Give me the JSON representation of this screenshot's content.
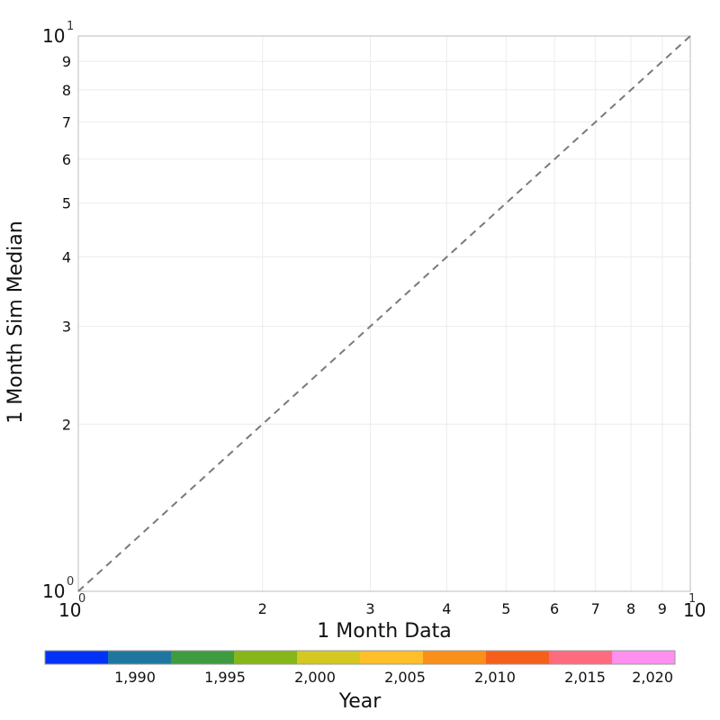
{
  "chart_data": {
    "type": "scatter",
    "xlabel": "1 Month Data",
    "ylabel": "1 Month Sim Median",
    "x_scale": "log",
    "y_scale": "log",
    "xlim": [
      1,
      10
    ],
    "ylim": [
      1,
      10
    ],
    "grid": true,
    "reference_line": {
      "style": "dashed",
      "color": "#7a7a7a",
      "points": [
        [
          1,
          1
        ],
        [
          10,
          10
        ]
      ]
    },
    "x_ticks": {
      "major": [
        {
          "value": 1,
          "base": "10",
          "exp": "0"
        },
        {
          "value": 10,
          "base": "10",
          "exp": "1"
        }
      ],
      "minor": [
        {
          "value": 2,
          "label": "2"
        },
        {
          "value": 3,
          "label": "3"
        },
        {
          "value": 4,
          "label": "4"
        },
        {
          "value": 5,
          "label": "5"
        },
        {
          "value": 6,
          "label": "6"
        },
        {
          "value": 7,
          "label": "7"
        },
        {
          "value": 8,
          "label": "8"
        },
        {
          "value": 9,
          "label": "9"
        }
      ]
    },
    "y_ticks": {
      "major": [
        {
          "value": 1,
          "base": "10",
          "exp": "0"
        },
        {
          "value": 10,
          "base": "10",
          "exp": "1"
        }
      ],
      "minor": [
        {
          "value": 2,
          "label": "2"
        },
        {
          "value": 3,
          "label": "3"
        },
        {
          "value": 4,
          "label": "4"
        },
        {
          "value": 5,
          "label": "5"
        },
        {
          "value": 6,
          "label": "6"
        },
        {
          "value": 7,
          "label": "7"
        },
        {
          "value": 8,
          "label": "8"
        },
        {
          "value": 9,
          "label": "9"
        }
      ]
    },
    "series": [],
    "colorbar": {
      "title": "Year",
      "range": [
        1985,
        2020
      ],
      "colors": [
        "#0033f5",
        "#1f77a0",
        "#3f9b3f",
        "#86b61a",
        "#d4c822",
        "#ffbf2a",
        "#fa8f1c",
        "#f4601c",
        "#ff6b7e",
        "#ff90f0"
      ],
      "ticks": [
        {
          "value": 1990,
          "label": "1,990"
        },
        {
          "value": 1995,
          "label": "1,995"
        },
        {
          "value": 2000,
          "label": "2,000"
        },
        {
          "value": 2005,
          "label": "2,005"
        },
        {
          "value": 2010,
          "label": "2,010"
        },
        {
          "value": 2015,
          "label": "2,015"
        },
        {
          "value": 2020,
          "label": "2,020"
        }
      ]
    }
  }
}
